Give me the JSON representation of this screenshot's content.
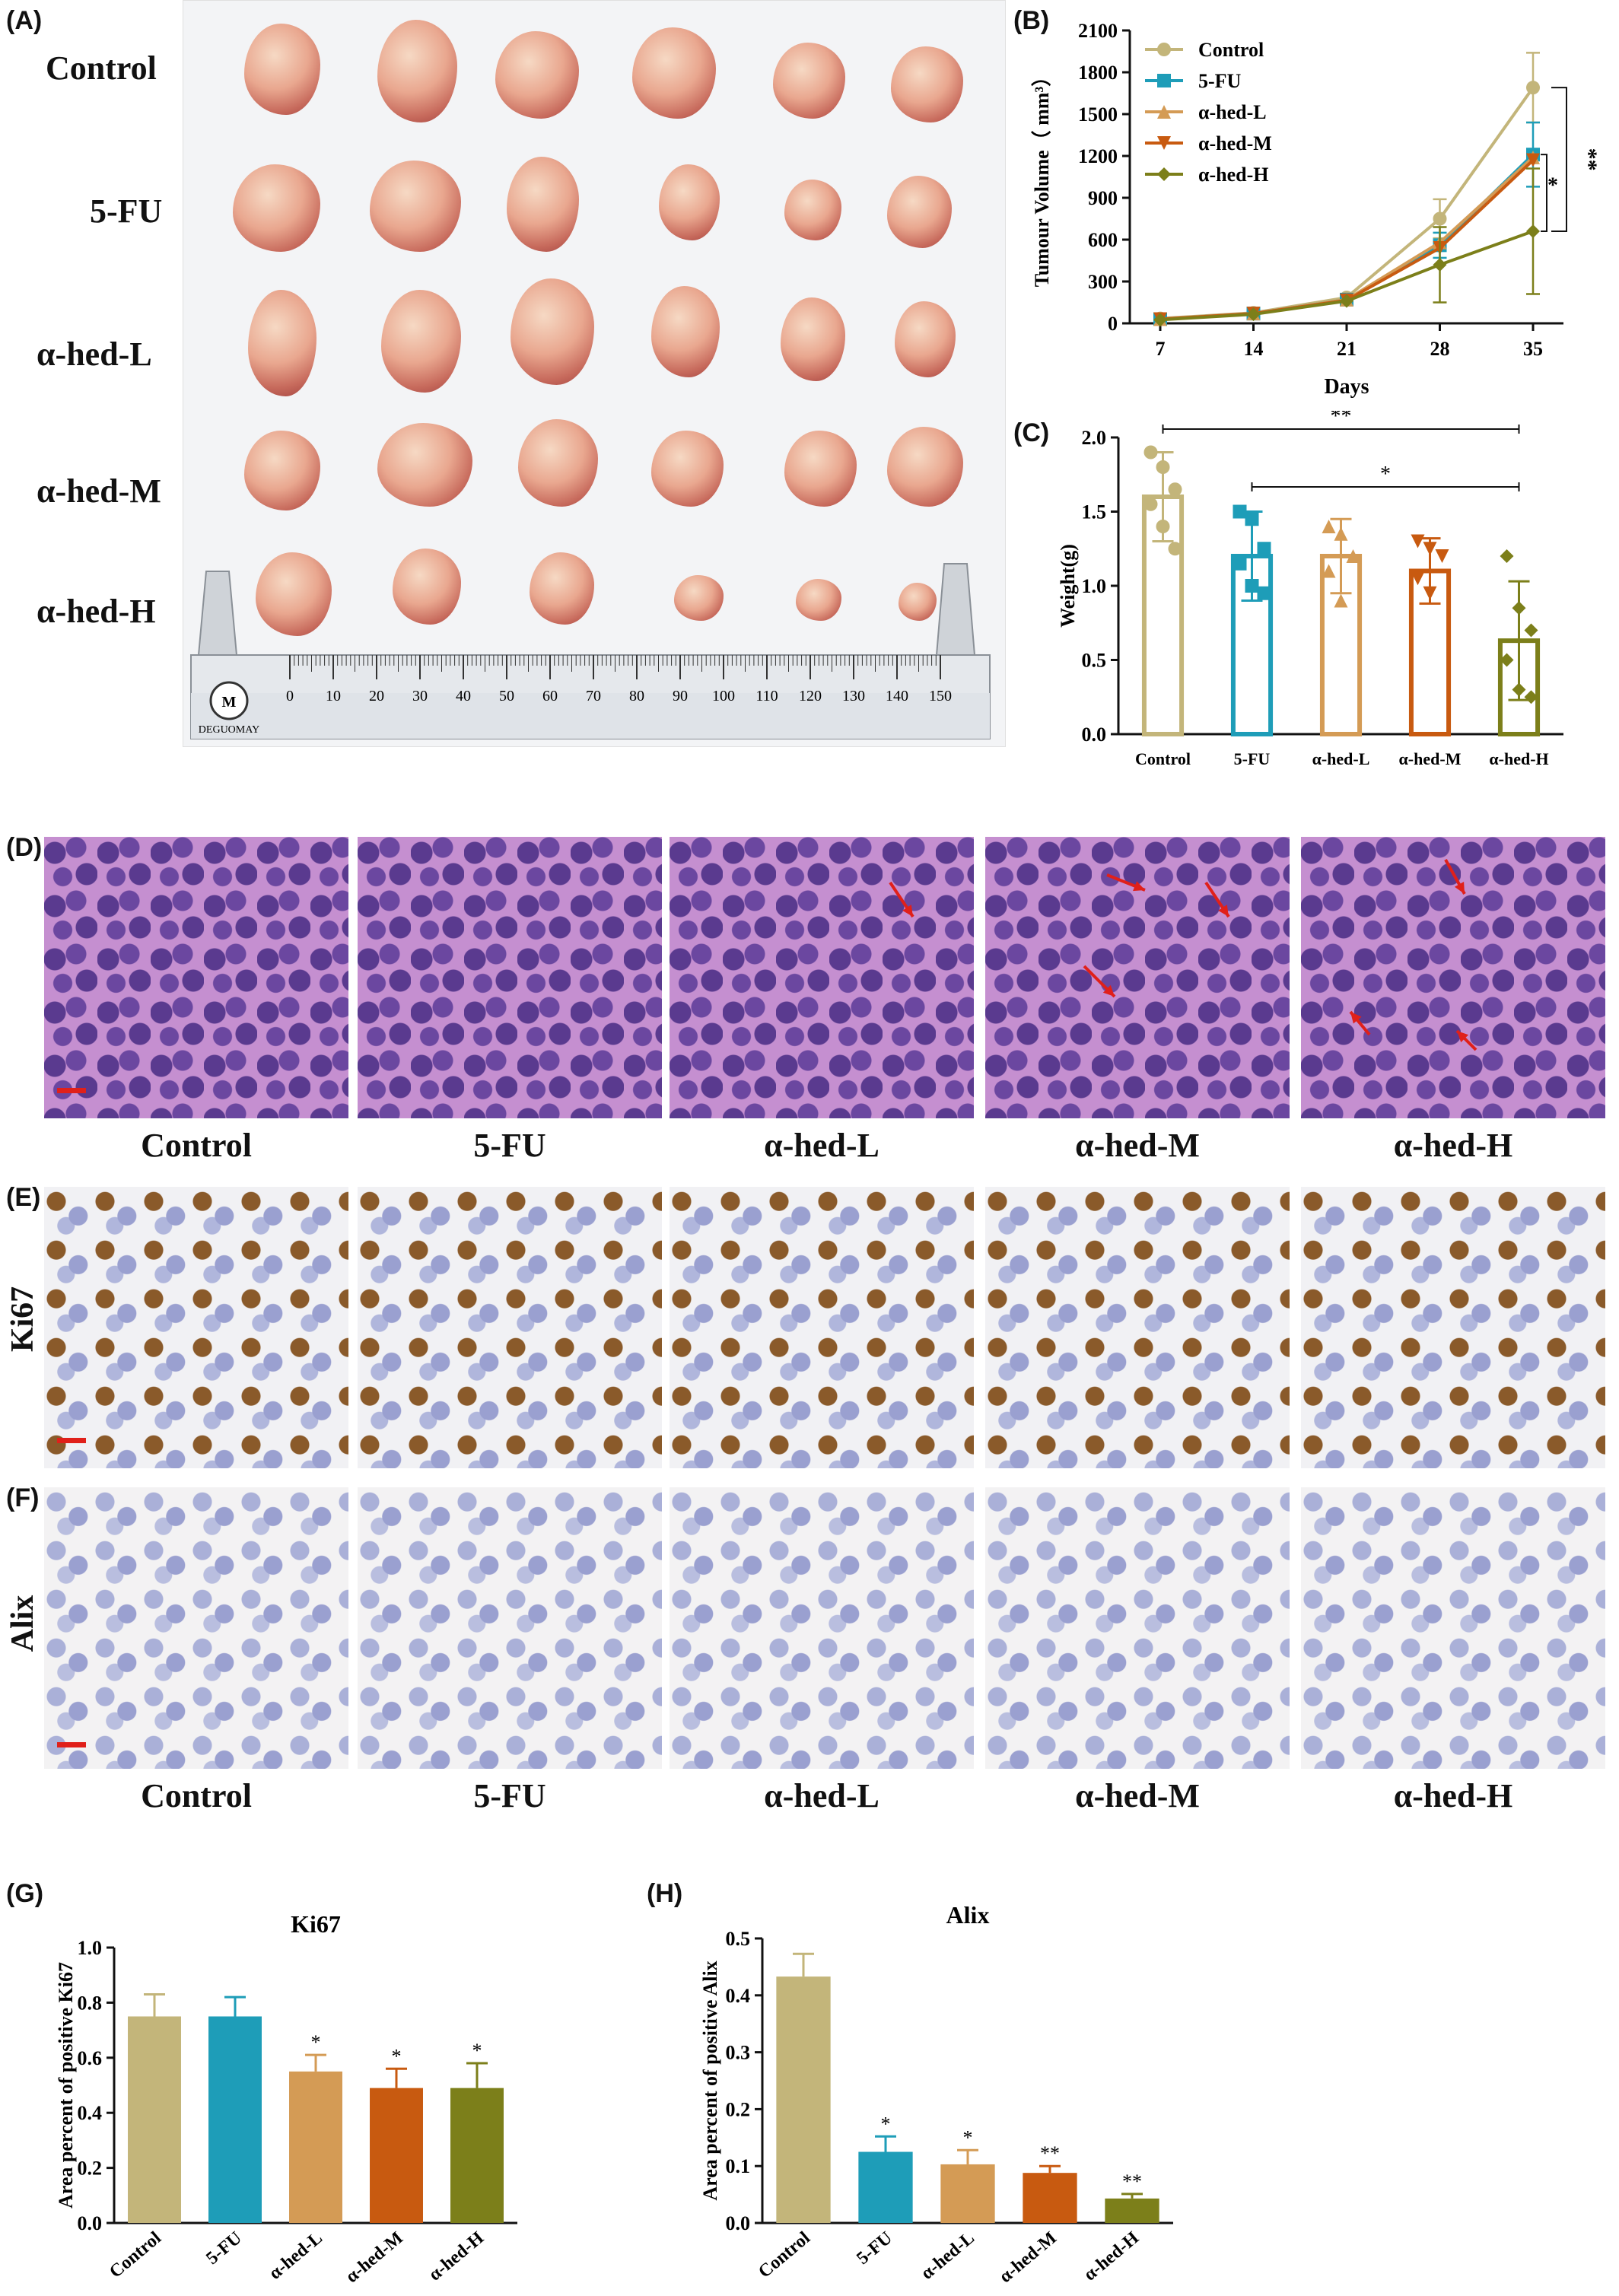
{
  "panels": {
    "A": "(A)",
    "B": "(B)",
    "C": "(C)",
    "D": "(D)",
    "E": "(E)",
    "F": "(F)",
    "G": "(G)",
    "H": "(H)"
  },
  "groups": [
    "Control",
    "5-FU",
    "α-hed-L",
    "α-hed-M",
    "α-hed-H"
  ],
  "photo": {
    "ruler_brand": "DEGUOMAY",
    "ruler_ticks": [
      "0",
      "10",
      "20",
      "30",
      "40",
      "50",
      "60",
      "70",
      "80",
      "90",
      "100",
      "110",
      "120",
      "130",
      "140",
      "150"
    ]
  },
  "stain_labels": {
    "ki67": "Ki67",
    "alix": "Alix"
  },
  "colors": {
    "control": "#c3b57a",
    "fu5": "#1e9db8",
    "hedL": "#d49b55",
    "hedM": "#c85a10",
    "hedH": "#7c7f1a",
    "arrow": "#e0201a"
  },
  "chart_data": [
    {
      "id": "B",
      "type": "line",
      "xlabel": "Days",
      "ylabel": "Tumour Volume（ mm³）",
      "x": [
        7,
        14,
        21,
        28,
        35
      ],
      "xlim": [
        7,
        35
      ],
      "ylim": [
        0,
        2100
      ],
      "yticks": [
        0,
        300,
        600,
        900,
        1200,
        1500,
        1800,
        2100
      ],
      "series": [
        {
          "name": "Control",
          "values": [
            35,
            75,
            185,
            750,
            1690
          ],
          "err": [
            0,
            0,
            0,
            140,
            250
          ]
        },
        {
          "name": "5-FU",
          "values": [
            30,
            70,
            170,
            560,
            1210
          ],
          "err": [
            0,
            0,
            0,
            90,
            230
          ]
        },
        {
          "name": "α-hed-L",
          "values": [
            30,
            70,
            170,
            580,
            1190
          ],
          "err": [
            0,
            0,
            0,
            0,
            0
          ]
        },
        {
          "name": "α-hed-M",
          "values": [
            30,
            70,
            165,
            540,
            1170
          ],
          "err": [
            0,
            0,
            0,
            0,
            0
          ]
        },
        {
          "name": "α-hed-H",
          "values": [
            25,
            65,
            160,
            420,
            660
          ],
          "err": [
            0,
            0,
            0,
            270,
            450
          ]
        }
      ],
      "sig": [
        "**",
        "*"
      ]
    },
    {
      "id": "C",
      "type": "bar",
      "ylabel": "Weight(g)",
      "categories": [
        "Control",
        "5-FU",
        "α-hed-L",
        "α-hed-M",
        "α-hed-H"
      ],
      "values": [
        1.6,
        1.2,
        1.2,
        1.1,
        0.63
      ],
      "err": [
        0.3,
        0.3,
        0.25,
        0.22,
        0.4
      ],
      "points": [
        [
          1.9,
          1.8,
          1.65,
          1.55,
          1.4,
          1.25
        ],
        [
          1.5,
          1.45,
          1.25,
          1.15,
          1.0,
          0.95
        ],
        [
          1.4,
          1.35,
          1.2,
          1.1,
          0.9
        ],
        [
          1.3,
          1.25,
          1.2,
          1.05,
          0.95
        ],
        [
          1.2,
          0.85,
          0.7,
          0.5,
          0.3,
          0.25
        ]
      ],
      "ylim": [
        0,
        2.0
      ],
      "yticks": [
        0.0,
        0.5,
        1.0,
        1.5,
        2.0
      ],
      "sig": [
        "**",
        "*"
      ]
    },
    {
      "id": "G",
      "type": "bar",
      "title": "Ki67",
      "ylabel": "Area percent of positive Ki67",
      "categories": [
        "Control",
        "5-FU",
        "α-hed-L",
        "α-hed-M",
        "α-hed-H"
      ],
      "values": [
        0.75,
        0.75,
        0.55,
        0.49,
        0.49
      ],
      "err": [
        0.08,
        0.07,
        0.06,
        0.07,
        0.09
      ],
      "marks": [
        "",
        "",
        "*",
        "*",
        "*"
      ],
      "ylim": [
        0,
        1.0
      ],
      "yticks": [
        0.0,
        0.2,
        0.4,
        0.6,
        0.8,
        1.0
      ]
    },
    {
      "id": "H",
      "type": "bar",
      "title": "Alix",
      "ylabel": "Area percent of positive Alix",
      "categories": [
        "Control",
        "5-FU",
        "α-hed-L",
        "α-hed-M",
        "α-hed-H"
      ],
      "values": [
        0.433,
        0.125,
        0.103,
        0.088,
        0.043
      ],
      "err": [
        0.04,
        0.027,
        0.025,
        0.012,
        0.008
      ],
      "marks": [
        "",
        "*",
        "*",
        "**",
        "**"
      ],
      "ylim": [
        0,
        0.5
      ],
      "yticks": [
        0.0,
        0.1,
        0.2,
        0.3,
        0.4,
        0.5
      ]
    }
  ]
}
